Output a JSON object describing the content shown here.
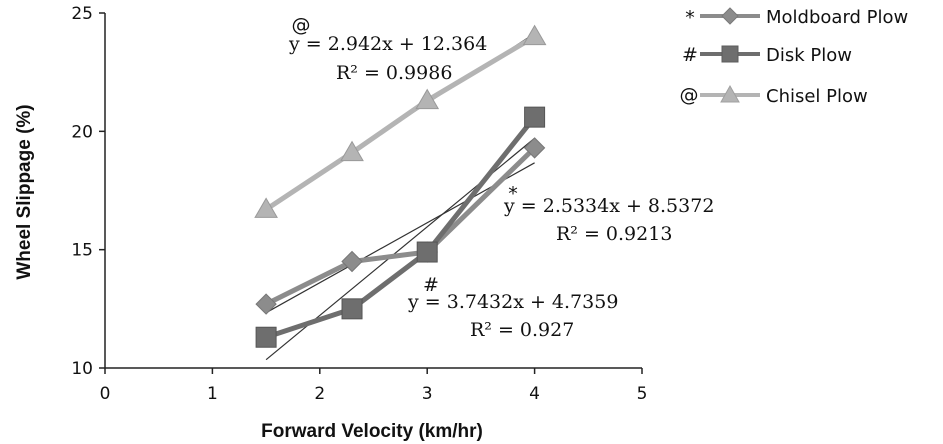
{
  "chart_data": {
    "type": "line",
    "title": "",
    "xlabel": "Forward Velocity (km/hr)",
    "ylabel": "Wheel Slippage (%)",
    "xlim": [
      0,
      5
    ],
    "ylim": [
      10,
      25
    ],
    "x_ticks": [
      "0",
      "1",
      "2",
      "3",
      "4",
      "5"
    ],
    "y_ticks": [
      "10",
      "15",
      "20",
      "25"
    ],
    "x": [
      1.5,
      2.3,
      3.0,
      4.0
    ],
    "grid": false,
    "legend_position": "top-right",
    "series": [
      {
        "name": "Moldboard Plow",
        "symbol": "*",
        "marker": "diamond",
        "color": "#8c8c8c",
        "values": [
          12.7,
          14.5,
          14.9,
          19.3
        ],
        "trendline": {
          "slope": 2.5334,
          "intercept": 8.5372
        },
        "equation": "y = 2.5334x + 8.5372",
        "r2": "R² = 0.9213"
      },
      {
        "name": "Disk Plow",
        "symbol": "#",
        "marker": "square",
        "color": "#6e6e6e",
        "values": [
          11.3,
          12.5,
          14.9,
          20.6
        ],
        "trendline": {
          "slope": 3.7432,
          "intercept": 4.7359
        },
        "equation": "y = 3.7432x + 4.7359",
        "r2": "R² = 0.927"
      },
      {
        "name": "Chisel Plow",
        "symbol": "@",
        "marker": "triangle",
        "color": "#b4b4b4",
        "values": [
          16.7,
          19.1,
          21.3,
          24.0
        ],
        "trendline": {
          "slope": 2.942,
          "intercept": 12.364
        },
        "equation": "y = 2.942x + 12.364",
        "r2": "R² = 0.9986"
      }
    ]
  }
}
